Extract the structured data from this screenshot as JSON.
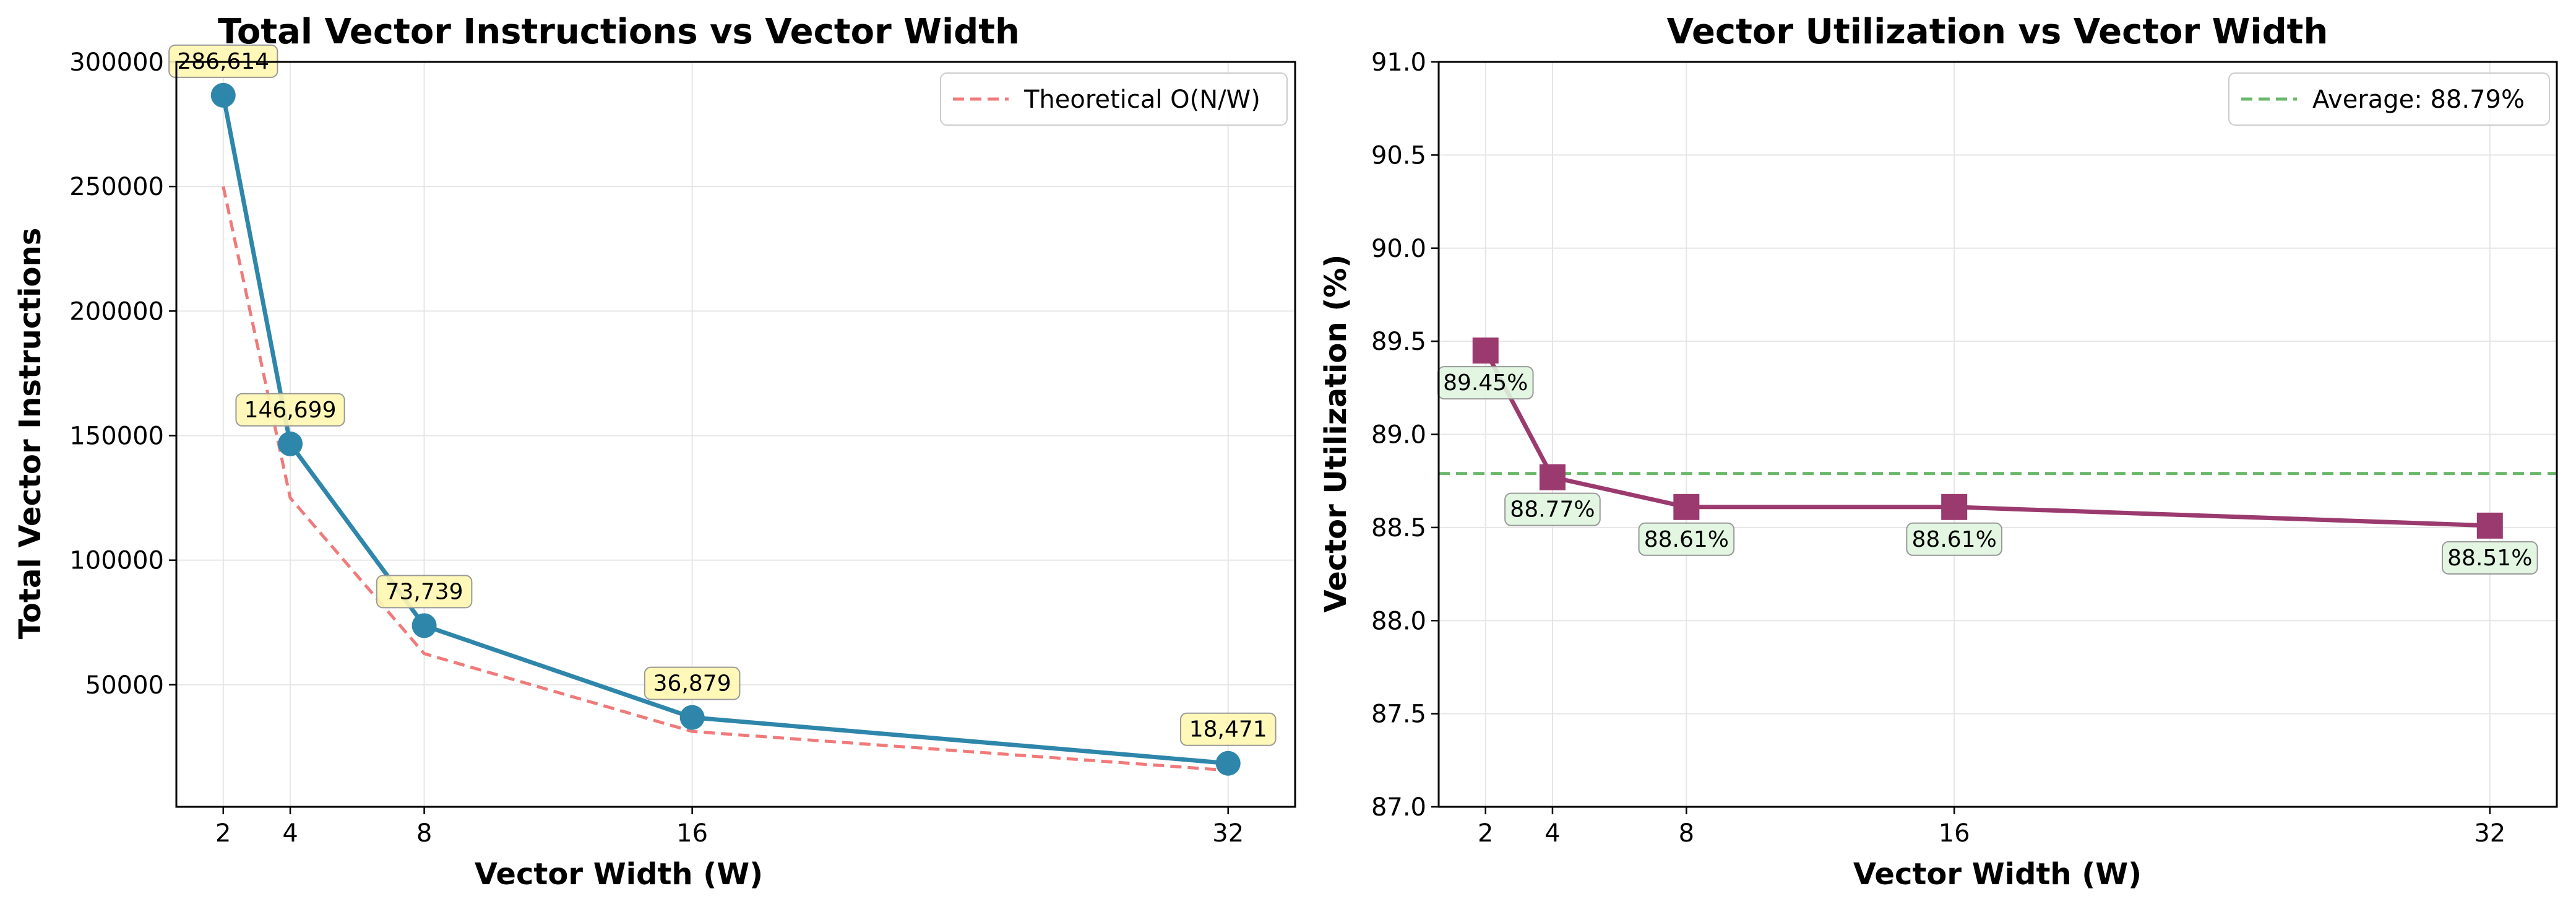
{
  "chart_data": [
    {
      "type": "line",
      "title": "Total Vector Instructions vs Vector Width",
      "xlabel": "Vector Width (W)",
      "ylabel": "Total Vector Instructions",
      "x": [
        2,
        4,
        8,
        16,
        32
      ],
      "xticks": [
        "2",
        "4",
        "8",
        "16",
        "32"
      ],
      "xlim": [
        0.6,
        34.0
      ],
      "ylim": [
        1000,
        300000
      ],
      "yticks": [
        "50000",
        "100000",
        "150000",
        "200000",
        "250000",
        "300000"
      ],
      "grid": true,
      "legend_position": "top-right",
      "series": [
        {
          "name": "Total Vector Instructions",
          "values": [
            286614,
            146699,
            73739,
            36879,
            18471
          ],
          "labels": [
            "286,614",
            "146,699",
            "73,739",
            "36,879",
            "18,471"
          ],
          "color": "#2e86ab",
          "marker": "circle"
        },
        {
          "name": "Theoretical O(N/W)",
          "values": [
            250000,
            125000,
            62500,
            31250,
            15625
          ],
          "color": "#f07a7a",
          "style": "dashed"
        }
      ],
      "label_box_color": "#fff7b0"
    },
    {
      "type": "line",
      "title": "Vector Utilization vs Vector Width",
      "xlabel": "Vector Width (W)",
      "ylabel": "Vector Utilization (%)",
      "x": [
        2,
        4,
        8,
        16,
        32
      ],
      "xticks": [
        "2",
        "4",
        "8",
        "16",
        "32"
      ],
      "xlim": [
        0.6,
        34.0
      ],
      "ylim": [
        87.0,
        91.0
      ],
      "yticks": [
        "87.0",
        "87.5",
        "88.0",
        "88.5",
        "89.0",
        "89.5",
        "90.0",
        "90.5",
        "91.0"
      ],
      "grid": true,
      "legend_position": "top-right",
      "series": [
        {
          "name": "Vector Utilization",
          "values": [
            89.45,
            88.77,
            88.61,
            88.61,
            88.51
          ],
          "labels": [
            "89.45%",
            "88.77%",
            "88.61%",
            "88.61%",
            "88.51%"
          ],
          "color": "#9b3a6e",
          "marker": "square"
        }
      ],
      "average": {
        "value": 88.79,
        "label": "Average: 88.79%",
        "color": "#6bb86b",
        "style": "dashed"
      },
      "label_box_color": "#dff5df"
    }
  ]
}
